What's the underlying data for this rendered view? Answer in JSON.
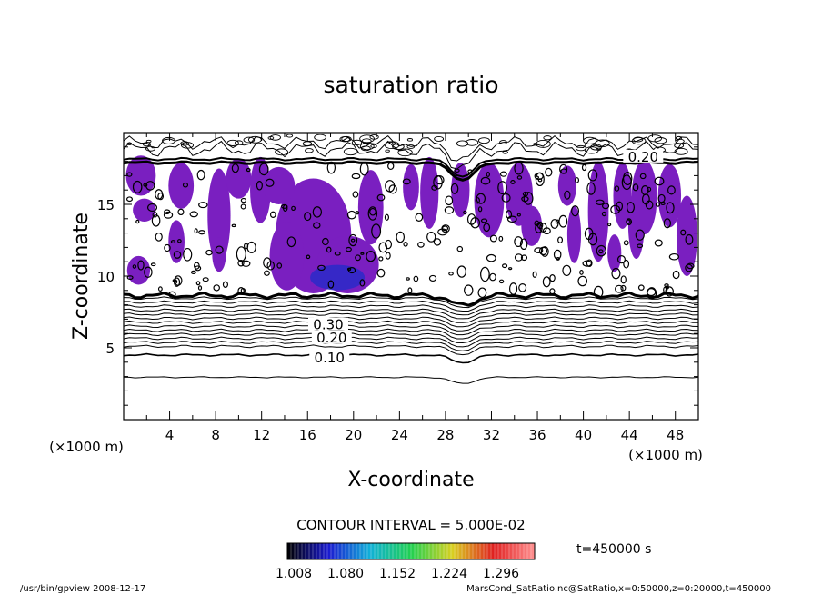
{
  "chart_data": {
    "type": "contour",
    "title": "saturation ratio",
    "xlabel": "X-coordinate",
    "ylabel": "Z-coordinate",
    "x_unit": "(×1000 m)",
    "x_ticks": [
      "4",
      "8",
      "12",
      "16",
      "20",
      "24",
      "28",
      "32",
      "36",
      "40",
      "44",
      "48"
    ],
    "y_ticks": [
      "5",
      "10",
      "15"
    ],
    "xlim": [
      0,
      50
    ],
    "ylim": [
      0,
      20
    ],
    "contour_labels": [
      {
        "text": "0.10",
        "x": 17.9,
        "z": 4.3
      },
      {
        "text": "0.20",
        "x": 18.1,
        "z": 5.7
      },
      {
        "text": "0.30",
        "x": 17.8,
        "z": 6.6
      },
      {
        "text": "0.20",
        "x": 45.2,
        "z": 18.3
      }
    ],
    "contour_interval_label": "CONTOUR INTERVAL = 5.000E-02",
    "colorbar": {
      "labels": [
        "1.008",
        "1.080",
        "1.152",
        "1.224",
        "1.296"
      ],
      "colors": [
        "#000000",
        "#1a1ad0",
        "#10b0d8",
        "#20d050",
        "#d8d020",
        "#e02020",
        "#ff9090"
      ]
    },
    "time_label": "t=450000 s",
    "footer_left": "/usr/bin/gpview  2008-12-17",
    "footer_right": "MarsCond_SatRatio.nc@SatRatio,x=0:50000,z=0:20000,t=450000",
    "fill_color": "#7a1fc0",
    "deep_color": "#2a2ac8"
  }
}
